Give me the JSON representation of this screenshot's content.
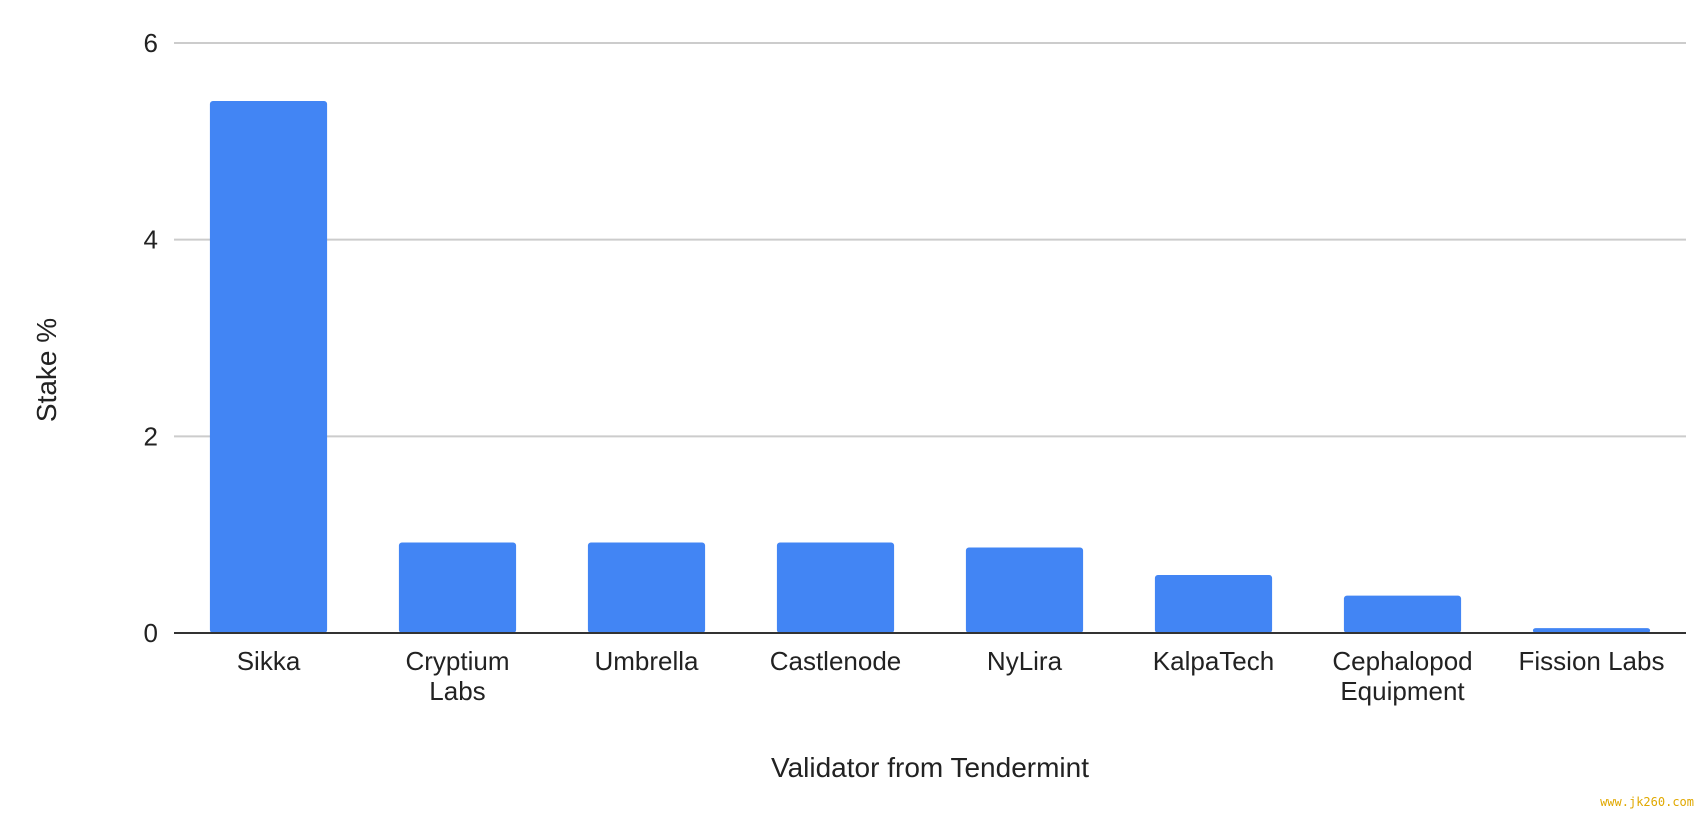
{
  "chart_data": {
    "type": "bar",
    "title": "",
    "xlabel": "Validator from Tendermint",
    "ylabel": "Stake %",
    "categories": [
      [
        "Sikka"
      ],
      [
        "Cryptium",
        "Labs"
      ],
      [
        "Umbrella"
      ],
      [
        "Castlenode"
      ],
      [
        "NyLira"
      ],
      [
        "KalpaTech"
      ],
      [
        "Cephalopod",
        "Equipment"
      ],
      [
        "Fission Labs"
      ]
    ],
    "values": [
      5.41,
      0.92,
      0.92,
      0.92,
      0.87,
      0.59,
      0.38,
      0.05
    ],
    "ylim": [
      0,
      6
    ],
    "yticks": [
      0,
      2,
      4,
      6
    ],
    "grid": true,
    "bar_color": "#4285f4"
  },
  "watermark": "www.jk260.com"
}
